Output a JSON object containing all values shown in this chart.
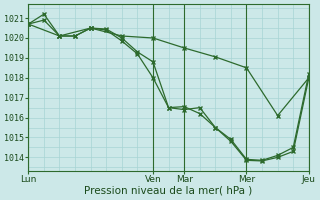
{
  "bg_color": "#cce8e8",
  "grid_color": "#a8d4d4",
  "line_color": "#2d6a2d",
  "xlabel": "Pression niveau de la mer( hPa )",
  "ylim": [
    1013.3,
    1021.7
  ],
  "yticks": [
    1014,
    1015,
    1016,
    1017,
    1018,
    1019,
    1020,
    1021
  ],
  "xtick_labels": [
    "Lun",
    "Ven",
    "Mar",
    "Mer",
    "Jeu"
  ],
  "xtick_positions": [
    0,
    48,
    60,
    84,
    108
  ],
  "total_x": 108,
  "series1_x": [
    0,
    6,
    12,
    18,
    24,
    30,
    36,
    42,
    48,
    54,
    60,
    66,
    72,
    78,
    84,
    90,
    96,
    102,
    108
  ],
  "series1_y": [
    1020.7,
    1021.2,
    1020.1,
    1020.1,
    1020.5,
    1020.45,
    1020.0,
    1019.3,
    1018.8,
    1016.5,
    1016.4,
    1016.5,
    1015.5,
    1014.8,
    1013.85,
    1013.82,
    1014.0,
    1014.3,
    1018.0
  ],
  "series2_x": [
    0,
    6,
    12,
    18,
    24,
    30,
    36,
    42,
    48,
    54,
    60,
    66,
    72,
    78,
    84,
    90,
    96,
    102,
    108
  ],
  "series2_y": [
    1020.7,
    1020.9,
    1020.1,
    1020.1,
    1020.5,
    1020.4,
    1019.85,
    1019.2,
    1018.0,
    1016.5,
    1016.55,
    1016.2,
    1015.5,
    1014.9,
    1013.9,
    1013.85,
    1014.1,
    1014.5,
    1018.2
  ],
  "series3_x": [
    0,
    12,
    24,
    36,
    48,
    60,
    72,
    84,
    96,
    108
  ],
  "series3_y": [
    1020.7,
    1020.1,
    1020.5,
    1020.1,
    1020.0,
    1019.5,
    1019.05,
    1018.5,
    1016.1,
    1018.0
  ]
}
